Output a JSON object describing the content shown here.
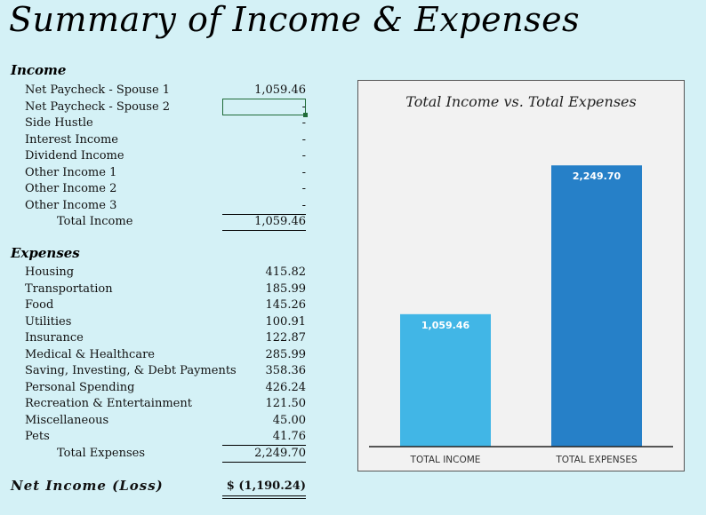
{
  "title": "Summary of Income & Expenses",
  "income": {
    "heading": "Income",
    "items": [
      {
        "label": "Net Paycheck - Spouse 1",
        "value": "1,059.46"
      },
      {
        "label": "Net Paycheck - Spouse 2",
        "value": "-"
      },
      {
        "label": "Side Hustle",
        "value": "-"
      },
      {
        "label": "Interest Income",
        "value": "-"
      },
      {
        "label": "Dividend Income",
        "value": "-"
      },
      {
        "label": "Other Income 1",
        "value": "-"
      },
      {
        "label": "Other Income 2",
        "value": "-"
      },
      {
        "label": "Other Income 3",
        "value": "-"
      }
    ],
    "total_label": "Total Income",
    "total_value": "1,059.46"
  },
  "expenses": {
    "heading": "Expenses",
    "items": [
      {
        "label": "Housing",
        "value": "415.82"
      },
      {
        "label": "Transportation",
        "value": "185.99"
      },
      {
        "label": "Food",
        "value": "145.26"
      },
      {
        "label": "Utilities",
        "value": "100.91"
      },
      {
        "label": "Insurance",
        "value": "122.87"
      },
      {
        "label": "Medical & Healthcare",
        "value": "285.99"
      },
      {
        "label": "Saving, Investing, & Debt Payments",
        "value": "358.36"
      },
      {
        "label": "Personal Spending",
        "value": "426.24"
      },
      {
        "label": "Recreation & Entertainment",
        "value": "121.50"
      },
      {
        "label": "Miscellaneous",
        "value": "45.00"
      },
      {
        "label": "Pets",
        "value": "41.76"
      }
    ],
    "total_label": "Total Expenses",
    "total_value": "2,249.70"
  },
  "net": {
    "label": "Net Income (Loss)",
    "value": "$ (1,190.24)"
  },
  "chart_data": {
    "type": "bar",
    "title": "Total Income vs. Total Expenses",
    "categories": [
      "TOTAL INCOME",
      "TOTAL EXPENSES"
    ],
    "values": [
      1059.46,
      2249.7
    ],
    "data_labels": [
      "1,059.46",
      "2,249.70"
    ],
    "colors": [
      "#41b6e6",
      "#2680c8"
    ],
    "ylim": [
      0,
      2500
    ],
    "grid": false,
    "legend": "none"
  }
}
